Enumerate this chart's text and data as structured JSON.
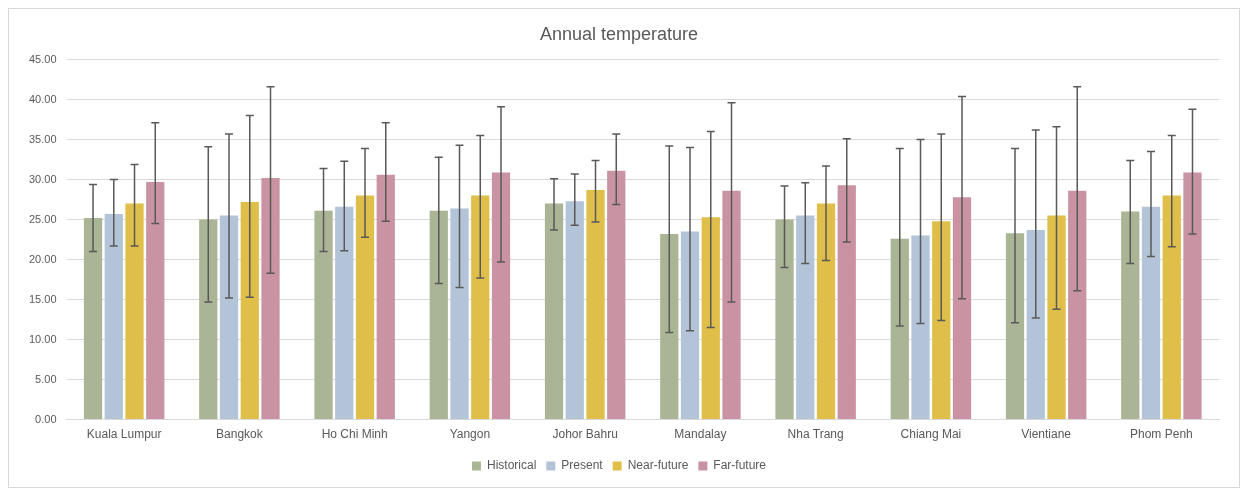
{
  "chart_data": {
    "type": "bar",
    "title": "Annual temperature",
    "categories": [
      "Kuala Lumpur",
      "Bangkok",
      "Ho Chi Minh",
      "Yangon",
      "Johor Bahru",
      "Mandalay",
      "Nha Trang",
      "Chiang Mai",
      "Vientiane",
      "Phom Penh"
    ],
    "series": [
      {
        "name": "Historical",
        "color": "#a9b594",
        "values": [
          25.2,
          25.0,
          26.1,
          26.1,
          27.0,
          23.2,
          25.0,
          22.6,
          23.3,
          26.0
        ],
        "errors": [
          [
            21.0,
            29.4
          ],
          [
            14.7,
            34.1
          ],
          [
            21.0,
            31.4
          ],
          [
            17.0,
            32.8
          ],
          [
            23.7,
            30.1
          ],
          [
            10.9,
            34.2
          ],
          [
            19.0,
            29.2
          ],
          [
            11.7,
            33.9
          ],
          [
            12.1,
            33.9
          ],
          [
            19.5,
            32.4
          ]
        ]
      },
      {
        "name": "Present",
        "color": "#b4c4d8",
        "values": [
          25.7,
          25.5,
          26.6,
          26.4,
          27.3,
          23.5,
          25.5,
          23.0,
          23.7,
          26.6
        ],
        "errors": [
          [
            21.7,
            30.0
          ],
          [
            15.2,
            35.7
          ],
          [
            21.1,
            32.3
          ],
          [
            16.5,
            34.3
          ],
          [
            24.3,
            30.7
          ],
          [
            11.1,
            34.0
          ],
          [
            19.5,
            29.6
          ],
          [
            12.0,
            35.0
          ],
          [
            12.7,
            36.2
          ],
          [
            20.4,
            33.5
          ]
        ]
      },
      {
        "name": "Near-future",
        "color": "#e0be4a",
        "values": [
          27.0,
          27.2,
          28.0,
          28.0,
          28.7,
          25.3,
          27.0,
          24.8,
          25.5,
          28.0
        ],
        "errors": [
          [
            21.7,
            31.9
          ],
          [
            15.3,
            38.0
          ],
          [
            22.8,
            33.9
          ],
          [
            17.7,
            35.5
          ],
          [
            24.7,
            32.4
          ],
          [
            11.5,
            36.0
          ],
          [
            19.9,
            31.7
          ],
          [
            12.4,
            35.7
          ],
          [
            13.8,
            36.6
          ],
          [
            21.6,
            35.5
          ]
        ]
      },
      {
        "name": "Far-future",
        "color": "#c993a4",
        "values": [
          29.7,
          30.2,
          30.6,
          30.9,
          31.1,
          28.6,
          29.3,
          27.8,
          28.6,
          30.9
        ],
        "errors": [
          [
            24.5,
            37.1
          ],
          [
            18.3,
            41.6
          ],
          [
            24.8,
            37.1
          ],
          [
            19.7,
            39.1
          ],
          [
            26.9,
            35.7
          ],
          [
            14.7,
            39.6
          ],
          [
            22.2,
            35.1
          ],
          [
            15.1,
            40.4
          ],
          [
            16.1,
            41.6
          ],
          [
            23.2,
            38.8
          ]
        ]
      }
    ],
    "ylim": [
      0,
      45
    ],
    "yticks": [
      {
        "value": 0,
        "label": "0.00"
      },
      {
        "value": 5,
        "label": "5.00"
      },
      {
        "value": 10,
        "label": "10.00"
      },
      {
        "value": 15,
        "label": "15.00"
      },
      {
        "value": 20,
        "label": "20.00"
      },
      {
        "value": 25,
        "label": "25.00"
      },
      {
        "value": 30,
        "label": "30.00"
      },
      {
        "value": 35,
        "label": "35.00"
      },
      {
        "value": 40,
        "label": "40.00"
      },
      {
        "value": 45,
        "label": "45.00"
      }
    ],
    "grid": "y",
    "legend": "bottom"
  }
}
